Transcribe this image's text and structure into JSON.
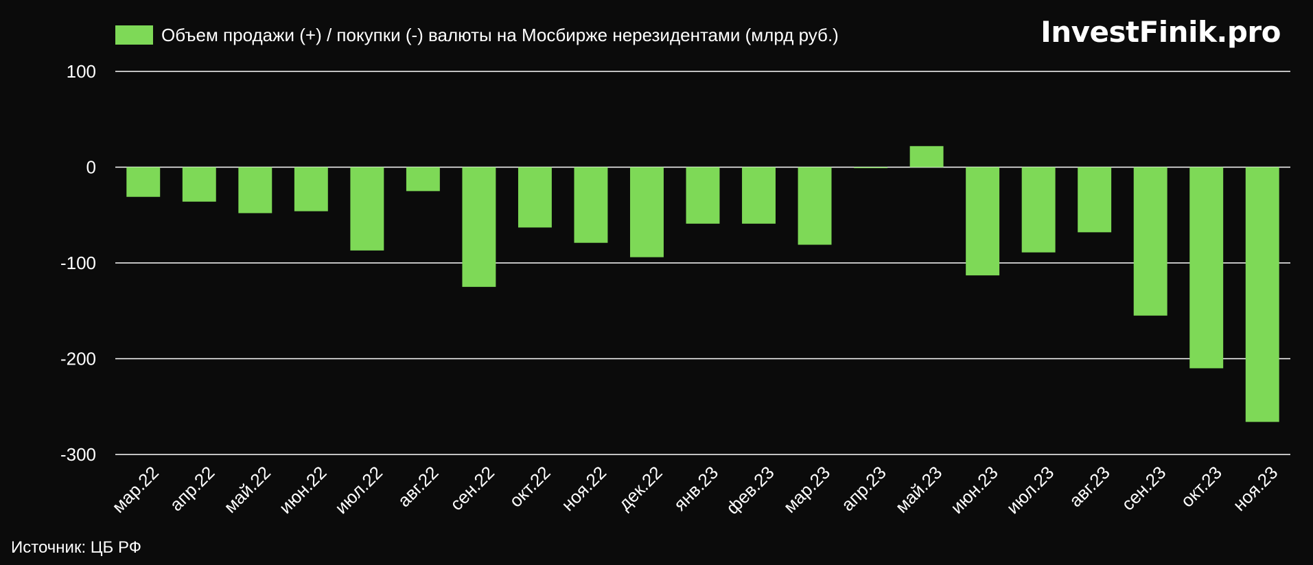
{
  "brand": "InvestFinik.pro",
  "source": "Источник: ЦБ РФ",
  "colors": {
    "background": "#0b0b0b",
    "bar": "#7ed957",
    "grid": "#ffffff",
    "text": "#ffffff"
  },
  "chart_data": {
    "type": "bar",
    "title": "",
    "xlabel": "",
    "ylabel": "",
    "ylim": [
      -300,
      100
    ],
    "yticks": [
      100,
      0,
      -100,
      -200,
      -300
    ],
    "grid": true,
    "legend_position": "top-left",
    "categories": [
      "мар.22",
      "апр.22",
      "май.22",
      "июн.22",
      "июл.22",
      "авг.22",
      "сен.22",
      "окт.22",
      "ноя.22",
      "дек.22",
      "янв.23",
      "фев.23",
      "мар.23",
      "апр.23",
      "май.23",
      "июн.23",
      "июл.23",
      "авг.23",
      "сен.23",
      "окт.23",
      "ноя.23"
    ],
    "series": [
      {
        "name": "Объем продажи (+) / покупки (-) валюты на Мосбирже нерезидентами (млрд руб.)",
        "values": [
          -31,
          -36,
          -48,
          -46,
          -87,
          -25,
          -125,
          -63,
          -79,
          -94,
          -59,
          -59,
          -81,
          -1,
          22,
          -113,
          -89,
          -68,
          -155,
          -210,
          -266
        ]
      }
    ]
  }
}
